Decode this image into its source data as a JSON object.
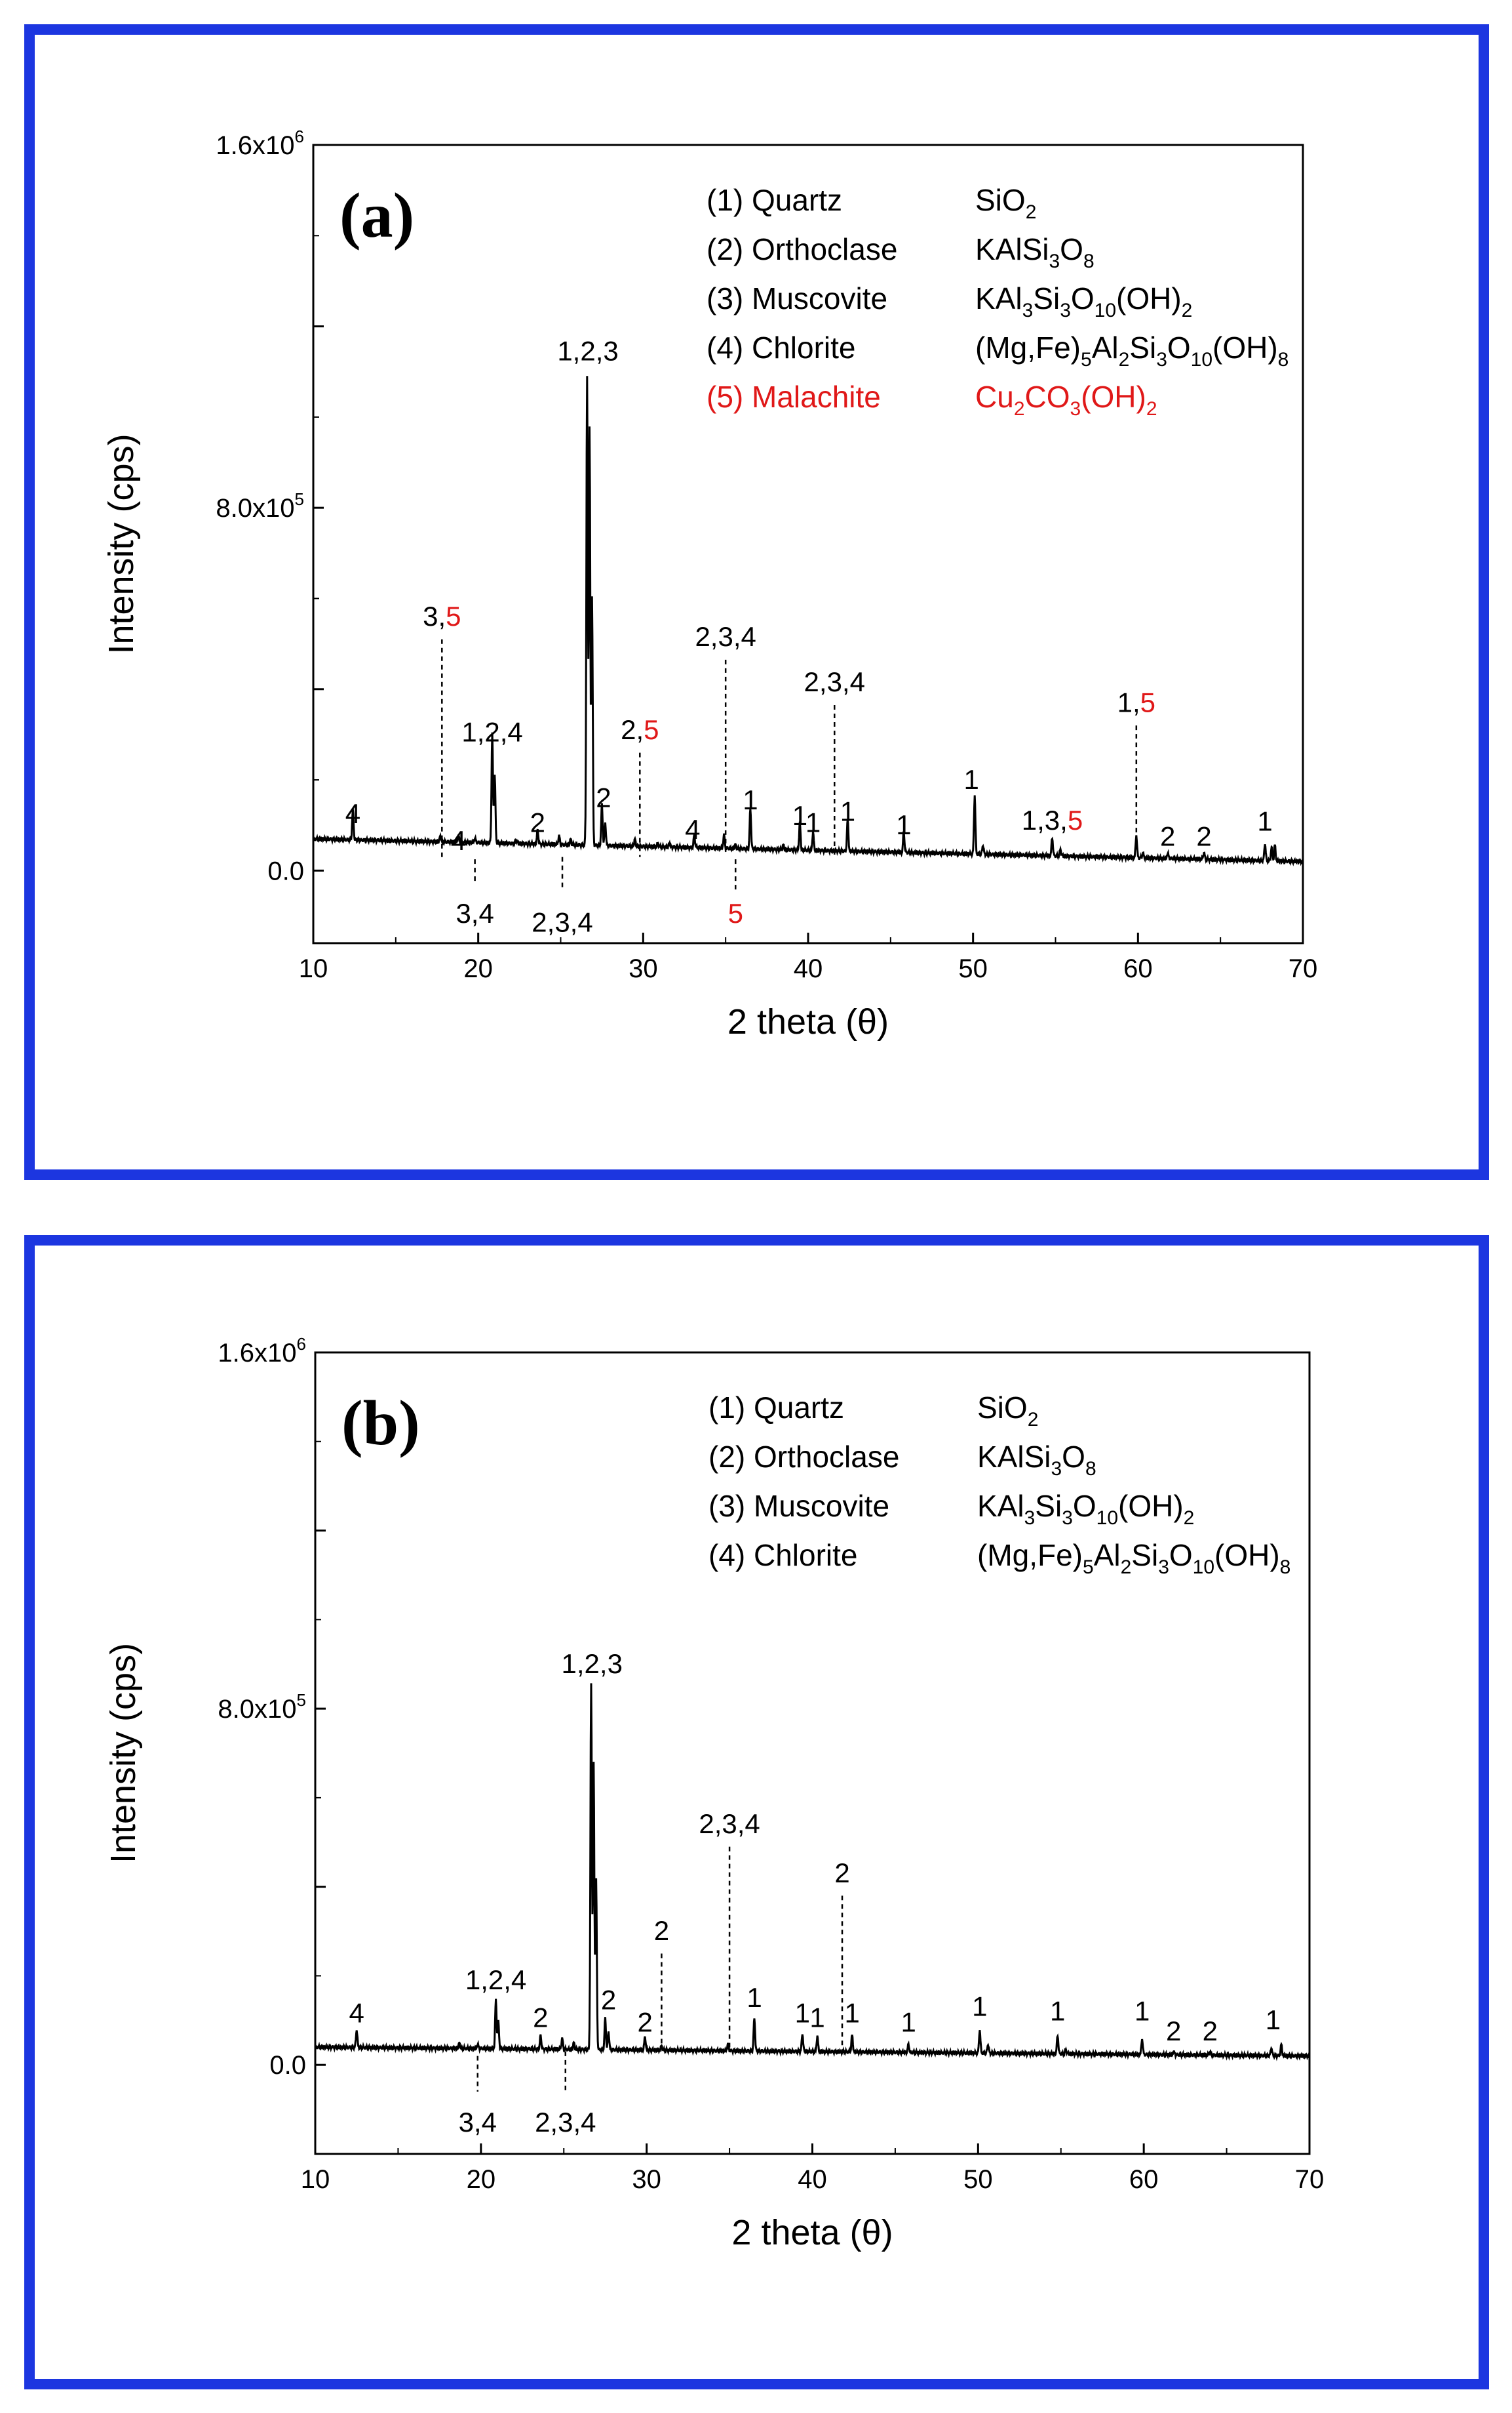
{
  "chart_data": [
    {
      "id": "a",
      "type": "line",
      "panel_label": "(a)",
      "xlabel": "2 theta (θ)",
      "ylabel": "Intensity (cps)",
      "xlim": [
        10,
        70
      ],
      "ylim": [
        -160000,
        1600000
      ],
      "xticks": [
        10,
        20,
        30,
        40,
        50,
        60,
        70
      ],
      "yticks": [
        {
          "value": 0,
          "label": "0.0"
        },
        {
          "value": 800000,
          "label": "8.0x10^5"
        },
        {
          "value": 1600000,
          "label": "1.6x10^6"
        }
      ],
      "baseline": {
        "start": 70000,
        "end": 20000
      },
      "peaks": [
        [
          12.4,
          65000
        ],
        [
          17.7,
          12000
        ],
        [
          18.8,
          15000
        ],
        [
          19.8,
          10000
        ],
        [
          20.85,
          240000
        ],
        [
          21.0,
          150000
        ],
        [
          22.3,
          8000
        ],
        [
          23.6,
          30000
        ],
        [
          24.9,
          20000
        ],
        [
          25.6,
          12000
        ],
        [
          26.6,
          1030000
        ],
        [
          26.75,
          920000
        ],
        [
          26.9,
          550000
        ],
        [
          27.5,
          90000
        ],
        [
          27.7,
          50000
        ],
        [
          29.5,
          15000
        ],
        [
          30.9,
          8000
        ],
        [
          31.6,
          8000
        ],
        [
          33.1,
          28000
        ],
        [
          34.9,
          30000
        ],
        [
          35.6,
          8000
        ],
        [
          36.5,
          90000
        ],
        [
          38.5,
          10000
        ],
        [
          39.5,
          60000
        ],
        [
          40.3,
          40000
        ],
        [
          42.4,
          70000
        ],
        [
          45.8,
          45000
        ],
        [
          50.1,
          130000
        ],
        [
          50.6,
          20000
        ],
        [
          54.8,
          40000
        ],
        [
          55.3,
          15000
        ],
        [
          59.9,
          50000
        ],
        [
          60.3,
          10000
        ],
        [
          61.8,
          12000
        ],
        [
          64.0,
          15000
        ],
        [
          67.7,
          38000
        ],
        [
          68.1,
          30000
        ],
        [
          68.3,
          35000
        ]
      ],
      "legend": [
        {
          "label": "(1) Quartz",
          "formula": "SiO2",
          "color": "#000000"
        },
        {
          "label": "(2) Orthoclase",
          "formula": "KAlSi3O8",
          "color": "#000000"
        },
        {
          "label": "(3) Muscovite",
          "formula": "KAl3Si3O10(OH)2",
          "color": "#000000"
        },
        {
          "label": "(4) Chlorite",
          "formula": "(Mg,Fe)5Al2Si3O10(OH)8",
          "color": "#000000"
        },
        {
          "label": "(5) Malachite",
          "formula": "Cu2CO3(OH)2",
          "color": "#e01818"
        }
      ],
      "annotations": [
        {
          "x": 12.4,
          "y": 105000,
          "text": "4"
        },
        {
          "x": 17.8,
          "y": 540000,
          "text": "3,",
          "red": "5",
          "dashed_to": 25000
        },
        {
          "x": 18.8,
          "y": 45000,
          "text": "4"
        },
        {
          "x": 20.85,
          "y": 285000,
          "text": "1,2,4"
        },
        {
          "x": 19.8,
          "y": -115000,
          "text": "3,4",
          "dashed_from": 25000,
          "dashed_to": -25000
        },
        {
          "x": 23.6,
          "y": 85000,
          "text": "2"
        },
        {
          "x": 25.1,
          "y": -135000,
          "text": "2,3,4",
          "dashed_from": 30000,
          "dashed_to": -45000
        },
        {
          "x": 26.65,
          "y": 1125000,
          "text": "1,2,3"
        },
        {
          "x": 27.6,
          "y": 140000,
          "text": "2"
        },
        {
          "x": 29.8,
          "y": 290000,
          "text": "2,",
          "red": "5",
          "dashed_to": 30000
        },
        {
          "x": 33.0,
          "y": 70000,
          "text": "4"
        },
        {
          "x": 35.0,
          "y": 495000,
          "text": "2,3,4",
          "dashed_to": 35000
        },
        {
          "x": 35.6,
          "y": -115000,
          "text": "",
          "red": "5",
          "dashed_from": 25000,
          "dashed_to": -45000
        },
        {
          "x": 36.5,
          "y": 135000,
          "text": "1"
        },
        {
          "x": 39.5,
          "y": 100000,
          "text": "1"
        },
        {
          "x": 40.3,
          "y": 85000,
          "text": "1"
        },
        {
          "x": 41.6,
          "y": 395000,
          "text": "2,3,4",
          "dashed_to": 35000
        },
        {
          "x": 42.4,
          "y": 110000,
          "text": "1"
        },
        {
          "x": 45.8,
          "y": 80000,
          "text": "1"
        },
        {
          "x": 49.9,
          "y": 180000,
          "text": "1"
        },
        {
          "x": 54.8,
          "y": 90000,
          "text": "1,3,",
          "red": "5"
        },
        {
          "x": 59.9,
          "y": 350000,
          "text": "1,",
          "red": "5",
          "dashed_to": 40000
        },
        {
          "x": 61.8,
          "y": 55000,
          "text": "2"
        },
        {
          "x": 64.0,
          "y": 55000,
          "text": "2"
        },
        {
          "x": 67.7,
          "y": 88000,
          "text": "1"
        }
      ]
    },
    {
      "id": "b",
      "type": "line",
      "panel_label": "(b)",
      "xlabel": "2 theta (θ)",
      "ylabel": "Intensity (cps)",
      "xlim": [
        10,
        70
      ],
      "ylim": [
        -200000,
        1600000
      ],
      "xticks": [
        10,
        20,
        30,
        40,
        50,
        60,
        70
      ],
      "yticks": [
        {
          "value": 0,
          "label": "0.0"
        },
        {
          "value": 800000,
          "label": "8.0x10^5"
        },
        {
          "value": 1600000,
          "label": "1.6x10^6"
        }
      ],
      "baseline": {
        "start": 40000,
        "end": 20000
      },
      "peaks": [
        [
          12.5,
          40000
        ],
        [
          18.7,
          12000
        ],
        [
          19.8,
          10000
        ],
        [
          20.9,
          110000
        ],
        [
          21.05,
          60000
        ],
        [
          23.6,
          30000
        ],
        [
          24.9,
          25000
        ],
        [
          25.6,
          15000
        ],
        [
          26.65,
          820000
        ],
        [
          26.8,
          640000
        ],
        [
          26.95,
          380000
        ],
        [
          27.5,
          70000
        ],
        [
          27.7,
          40000
        ],
        [
          29.9,
          30000
        ],
        [
          30.9,
          10000
        ],
        [
          34.9,
          15000
        ],
        [
          36.5,
          75000
        ],
        [
          39.4,
          40000
        ],
        [
          40.3,
          35000
        ],
        [
          42.4,
          38000
        ],
        [
          45.8,
          18000
        ],
        [
          50.1,
          52000
        ],
        [
          50.6,
          20000
        ],
        [
          54.8,
          42000
        ],
        [
          55.3,
          10000
        ],
        [
          59.9,
          35000
        ],
        [
          61.8,
          8000
        ],
        [
          64.0,
          8000
        ],
        [
          67.7,
          18000
        ],
        [
          68.3,
          25000
        ]
      ],
      "legend": [
        {
          "label": "(1) Quartz",
          "formula": "SiO2",
          "color": "#000000"
        },
        {
          "label": "(2) Orthoclase",
          "formula": "KAlSi3O8",
          "color": "#000000"
        },
        {
          "label": "(3) Muscovite",
          "formula": "KAl3Si3O10(OH)2",
          "color": "#000000"
        },
        {
          "label": "(4) Chlorite",
          "formula": "(Mg,Fe)5Al2Si3O10(OH)8",
          "color": "#000000"
        }
      ],
      "annotations": [
        {
          "x": 12.5,
          "y": 95000,
          "text": "4"
        },
        {
          "x": 20.9,
          "y": 170000,
          "text": "1,2,4"
        },
        {
          "x": 19.8,
          "y": -150000,
          "text": "3,4",
          "dashed_from": 20000,
          "dashed_to": -60000
        },
        {
          "x": 23.6,
          "y": 85000,
          "text": "2"
        },
        {
          "x": 25.1,
          "y": -150000,
          "text": "2,3,4",
          "dashed_from": 30000,
          "dashed_to": -60000
        },
        {
          "x": 26.7,
          "y": 880000,
          "text": "1,2,3"
        },
        {
          "x": 27.7,
          "y": 125000,
          "text": "2"
        },
        {
          "x": 29.9,
          "y": 75000,
          "text": "2"
        },
        {
          "x": 30.9,
          "y": 280000,
          "text": "2",
          "dashed_to": 35000
        },
        {
          "x": 35.0,
          "y": 520000,
          "text": "2,3,4",
          "dashed_to": 30000
        },
        {
          "x": 36.5,
          "y": 130000,
          "text": "1"
        },
        {
          "x": 39.4,
          "y": 95000,
          "text": "1"
        },
        {
          "x": 40.3,
          "y": 85000,
          "text": "1"
        },
        {
          "x": 41.8,
          "y": 410000,
          "text": "2",
          "dashed_to": 30000
        },
        {
          "x": 42.4,
          "y": 95000,
          "text": "1"
        },
        {
          "x": 45.8,
          "y": 75000,
          "text": "1"
        },
        {
          "x": 50.1,
          "y": 110000,
          "text": "1"
        },
        {
          "x": 54.8,
          "y": 100000,
          "text": "1"
        },
        {
          "x": 59.9,
          "y": 100000,
          "text": "1"
        },
        {
          "x": 61.8,
          "y": 55000,
          "text": "2"
        },
        {
          "x": 64.0,
          "y": 55000,
          "text": "2"
        },
        {
          "x": 67.8,
          "y": 80000,
          "text": "1"
        }
      ]
    }
  ]
}
